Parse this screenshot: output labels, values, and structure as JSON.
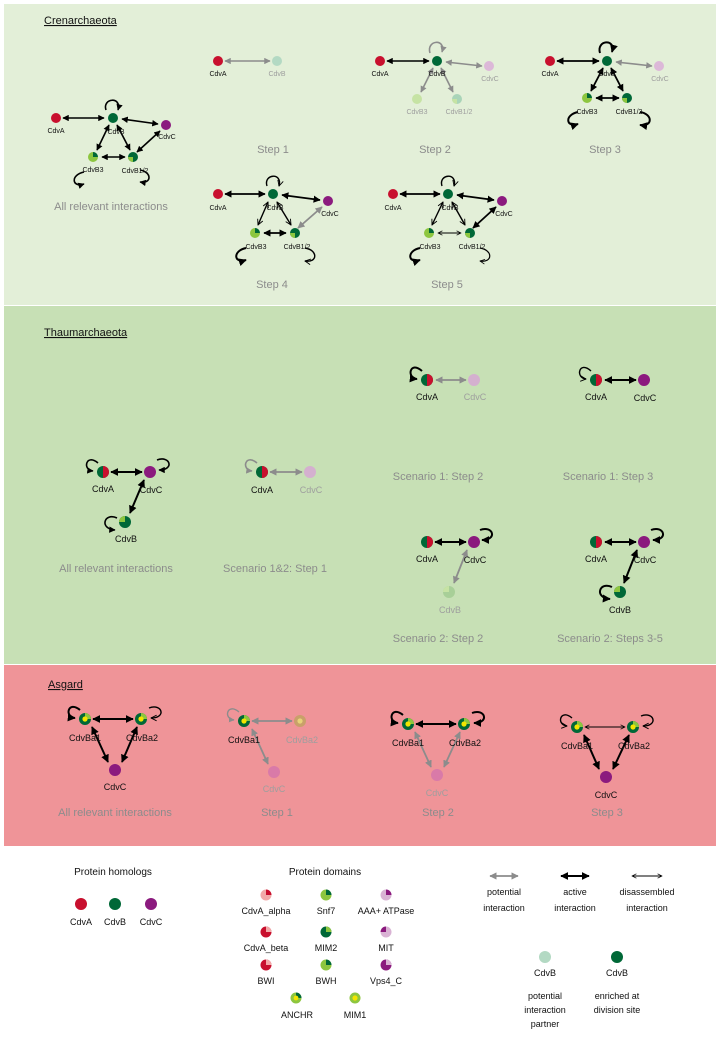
{
  "sections": {
    "crenarchaeota": {
      "title": "Crenarchaeota",
      "bg": "#e3efd8"
    },
    "thaumarchaeota": {
      "title": "Thaumarchaeota",
      "bg": "#c7e0b5"
    },
    "asgard": {
      "title": "Asgard",
      "bg": "#ef9498"
    }
  },
  "labels": {
    "cdva": "CdvA",
    "cdvb": "CdvB",
    "cdvc": "CdvC",
    "cdvb3": "CdvB3",
    "cdvb12": "CdvB1/2",
    "cdvba1": "CdvBa1",
    "cdvba2": "CdvBa2"
  },
  "captions": {
    "cren_all": "All relevant interactions",
    "cren_s1": "Step 1",
    "cren_s2": "Step 2",
    "cren_s3": "Step 3",
    "cren_s4": "Step 4",
    "cren_s5": "Step 5",
    "thaum_all": "All relevant interactions",
    "thaum_s12": "Scenario 1&2: Step 1",
    "thaum_sc1s2": "Scenario 1: Step 2",
    "thaum_sc1s3": "Scenario 1: Step 3",
    "thaum_sc2s2": "Scenario 2: Step 2",
    "thaum_sc2s35": "Scenario 2: Steps 3-5",
    "asg_all": "All relevant interactions",
    "asg_s1": "Step 1",
    "asg_s2": "Step 2",
    "asg_s3": "Step 3"
  },
  "legend": {
    "homologs_title": "Protein homologs",
    "domains_title": "Protein domains",
    "domains": [
      "CdvA_alpha",
      "Snf7",
      "AAA+ ATPase",
      "CdvA_beta",
      "MIM2",
      "MIT",
      "BWI",
      "BWH",
      "Vps4_C",
      "ANCHR",
      "MIM1"
    ],
    "arrows": {
      "potential": [
        "potential",
        "interaction"
      ],
      "active": [
        "active",
        "interaction"
      ],
      "disassembled": [
        "disassembled",
        "interaction"
      ]
    },
    "partner": [
      "potential",
      "interaction",
      "partner"
    ],
    "enriched": [
      "enriched at",
      "division site"
    ]
  },
  "colors": {
    "cdva": "#c8102e",
    "cdvb": "#006837",
    "cdvc": "#8b1a7e",
    "lightgreen": "#8dc63f",
    "yellow": "#f2e500",
    "gray_arrow": "#8c8c8c",
    "caption_gray": "#8c8c8c"
  }
}
